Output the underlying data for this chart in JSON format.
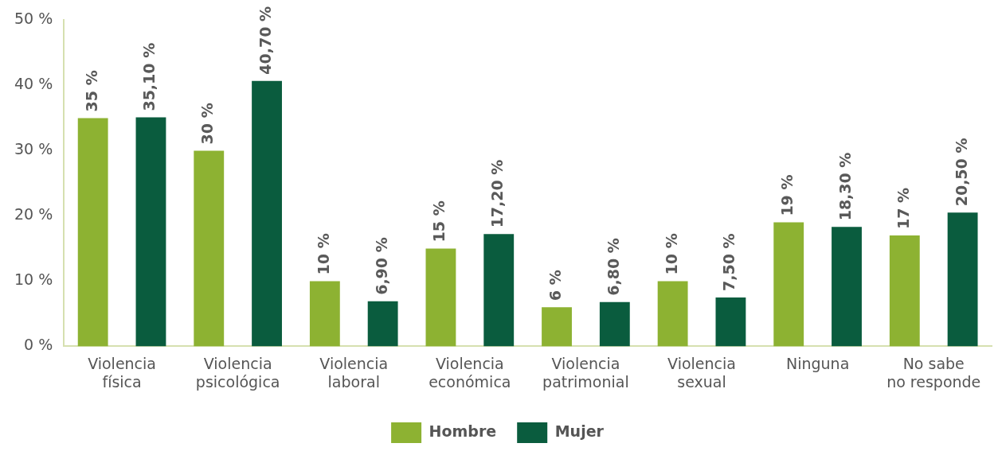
{
  "chart_data": {
    "type": "bar",
    "categories": [
      "Violencia\nfísica",
      "Violencia\npsicológica",
      "Violencia\nlaboral",
      "Violencia\neconómica",
      "Violencia\npatrimonial",
      "Violencia\nsexual",
      "Ninguna",
      "No sabe\nno responde"
    ],
    "series": [
      {
        "name": "Hombre",
        "color": "#8db232",
        "values": [
          35,
          30,
          10,
          15,
          6,
          10,
          19,
          17
        ],
        "value_labels": [
          "35 %",
          "30 %",
          "10 %",
          "15 %",
          "6 %",
          "10 %",
          "19 %",
          "17 %"
        ]
      },
      {
        "name": "Mujer",
        "color": "#0a5c3e",
        "values": [
          35.1,
          40.7,
          6.9,
          17.2,
          6.8,
          7.5,
          18.3,
          20.5
        ],
        "value_labels": [
          "35,10 %",
          "40,70 %",
          "6,90 %",
          "17,20 %",
          "6,80 %",
          "7,50 %",
          "18,30 %",
          "20,50 %"
        ]
      }
    ],
    "ylim": [
      0,
      50
    ],
    "yticks": [
      {
        "value": 0,
        "label": "0 %"
      },
      {
        "value": 10,
        "label": "10 %"
      },
      {
        "value": 20,
        "label": "20 %"
      },
      {
        "value": 30,
        "label": "30 %"
      },
      {
        "value": 40,
        "label": "40 %"
      },
      {
        "value": 50,
        "label": "50 %"
      }
    ],
    "grid": false,
    "legend": "bottom"
  }
}
